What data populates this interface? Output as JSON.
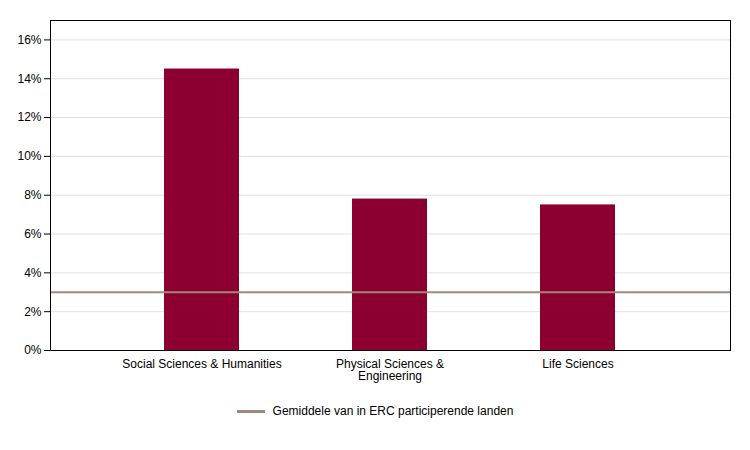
{
  "chart_data": {
    "type": "bar",
    "categories": [
      "Social Sciences & Humanities",
      "Physical Sciences &\nEngineering",
      "Life Sciences"
    ],
    "values": [
      0.145,
      0.078,
      0.075
    ],
    "color": "#8B0030",
    "reference_line": {
      "name": "Gemiddele van in ERC participerende landen",
      "value": 0.03,
      "color": "#A08878"
    },
    "ylim": [
      0,
      0.17
    ],
    "yticks": [
      {
        "value": 0.0,
        "label": "0%"
      },
      {
        "value": 0.02,
        "label": "2%"
      },
      {
        "value": 0.04,
        "label": "4%"
      },
      {
        "value": 0.06,
        "label": "6%"
      },
      {
        "value": 0.08,
        "label": "8%"
      },
      {
        "value": 0.1,
        "label": "10%"
      },
      {
        "value": 0.12,
        "label": "12%"
      },
      {
        "value": 0.14,
        "label": "14%"
      },
      {
        "value": 0.16,
        "label": "16%"
      }
    ],
    "grid": true,
    "legend": "bottom"
  }
}
